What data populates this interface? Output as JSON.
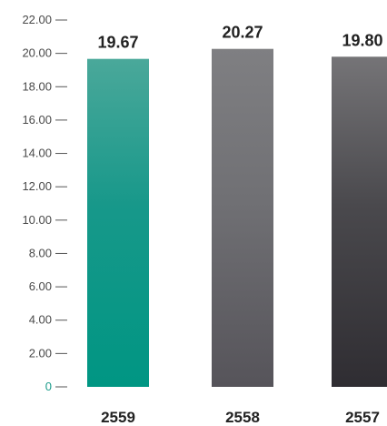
{
  "chart_data": {
    "type": "bar",
    "categories": [
      "2559",
      "2558",
      "2557"
    ],
    "values": [
      19.67,
      20.27,
      19.8
    ],
    "value_labels": [
      "19.67",
      "20.27",
      "19.80"
    ],
    "y_ticks": [
      "0",
      "2.00",
      "4.00",
      "6.00",
      "8.00",
      "10.00",
      "12.00",
      "14.00",
      "16.00",
      "18.00",
      "20.00",
      "22.00"
    ],
    "ylim": [
      0,
      22
    ],
    "grid": false,
    "colors": [
      {
        "top": "#4aa89a",
        "mid": "#17988a",
        "bottom": "#009683"
      },
      {
        "top": "#7f7f82",
        "mid": "#707074",
        "bottom": "#56545a"
      },
      {
        "top": "#757477",
        "mid": "#4a494d",
        "bottom": "#2f2d32"
      }
    ],
    "title": "",
    "xlabel": "",
    "ylabel": ""
  }
}
